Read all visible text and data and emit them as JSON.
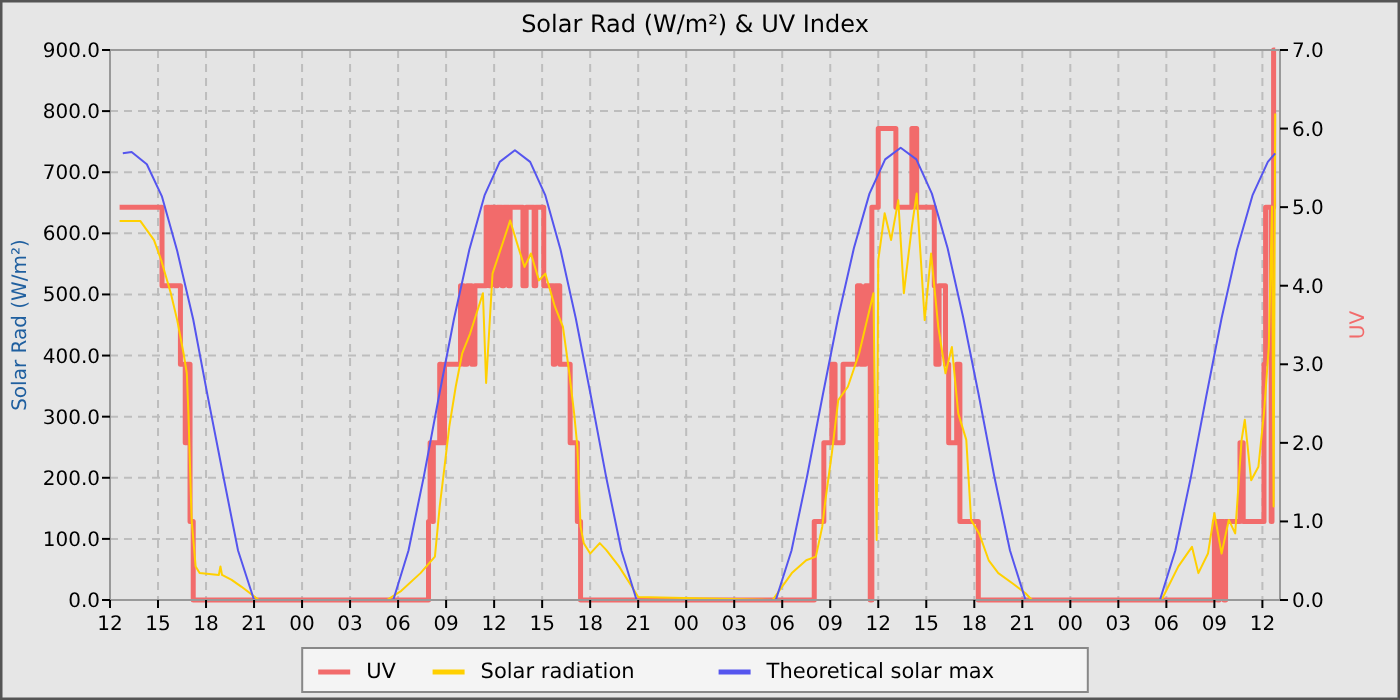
{
  "chart_data": {
    "type": "line",
    "title": "Solar Rad (W/m²) &  UV Index",
    "ylabel": "Solar Rad (W/m²)",
    "y2label": "UV",
    "xlim": [
      12,
      85.1
    ],
    "ylim": [
      0,
      900
    ],
    "y2lim": [
      0,
      7
    ],
    "xticks": [
      {
        "value": 12,
        "label": "12"
      },
      {
        "value": 15,
        "label": "15"
      },
      {
        "value": 18,
        "label": "18"
      },
      {
        "value": 21,
        "label": "21"
      },
      {
        "value": 24,
        "label": "00"
      },
      {
        "value": 27,
        "label": "03"
      },
      {
        "value": 30,
        "label": "06"
      },
      {
        "value": 33,
        "label": "09"
      },
      {
        "value": 36,
        "label": "12"
      },
      {
        "value": 39,
        "label": "15"
      },
      {
        "value": 42,
        "label": "18"
      },
      {
        "value": 45,
        "label": "21"
      },
      {
        "value": 48,
        "label": "00"
      },
      {
        "value": 51,
        "label": "03"
      },
      {
        "value": 54,
        "label": "06"
      },
      {
        "value": 57,
        "label": "09"
      },
      {
        "value": 60,
        "label": "12"
      },
      {
        "value": 63,
        "label": "15"
      },
      {
        "value": 66,
        "label": "18"
      },
      {
        "value": 69,
        "label": "21"
      },
      {
        "value": 72,
        "label": "00"
      },
      {
        "value": 75,
        "label": "03"
      },
      {
        "value": 78,
        "label": "06"
      },
      {
        "value": 81,
        "label": "09"
      },
      {
        "value": 84,
        "label": "12"
      }
    ],
    "yticks": [
      {
        "value": 0,
        "label": "0.0"
      },
      {
        "value": 100,
        "label": "100.0"
      },
      {
        "value": 200,
        "label": "200.0"
      },
      {
        "value": 300,
        "label": "300.0"
      },
      {
        "value": 400,
        "label": "400.0"
      },
      {
        "value": 500,
        "label": "500.0"
      },
      {
        "value": 600,
        "label": "600.0"
      },
      {
        "value": 700,
        "label": "700.0"
      },
      {
        "value": 800,
        "label": "800.0"
      },
      {
        "value": 900,
        "label": "900.0"
      }
    ],
    "y2ticks": [
      {
        "value": 0,
        "label": "0.0"
      },
      {
        "value": 1,
        "label": "1.0"
      },
      {
        "value": 2,
        "label": "2.0"
      },
      {
        "value": 3,
        "label": "3.0"
      },
      {
        "value": 4,
        "label": "4.0"
      },
      {
        "value": 5,
        "label": "5.0"
      },
      {
        "value": 6,
        "label": "6.0"
      },
      {
        "value": 7,
        "label": "7.0"
      }
    ],
    "grid": true,
    "legend": "bottom",
    "marker": "none",
    "line_style": "solid",
    "series": [
      {
        "name": "UV",
        "type": "step",
        "axis": "y2",
        "color": "#f26b6b",
        "x": [
          12.6,
          15.25,
          16.4,
          16.7,
          16.8,
          17.0,
          17.2,
          31.9,
          32.0,
          32.15,
          32.2,
          32.6,
          32.7,
          32.9,
          33.9,
          34.1,
          34.3,
          34.6,
          34.8,
          35.5,
          35.7,
          35.8,
          36.1,
          36.2,
          36.5,
          36.6,
          36.9,
          37.0,
          37.8,
          38.0,
          38.5,
          38.6,
          39.1,
          39.7,
          39.8,
          40.1,
          40.75,
          41.2,
          41.4,
          56.0,
          56.6,
          57.1,
          57.3,
          57.8,
          58.7,
          58.9,
          59.2,
          59.5,
          59.6,
          60.0,
          61.1,
          62.1,
          62.4,
          63.5,
          63.6,
          63.8,
          64.2,
          64.4,
          64.9,
          65.1,
          66.25,
          81.0,
          81.2,
          81.3,
          81.6,
          81.7,
          82.6,
          82.8,
          84.1,
          84.2,
          84.55,
          84.6,
          84.7,
          84.8
        ],
        "values": [
          5,
          4,
          3,
          2,
          3,
          1,
          0,
          1,
          2,
          1,
          2,
          3,
          2,
          3,
          4,
          3,
          4,
          3,
          4,
          5,
          4,
          5,
          4,
          5,
          4,
          5,
          4,
          5,
          4,
          5,
          4,
          5,
          4,
          3,
          4,
          3,
          2,
          1,
          0,
          1,
          2,
          3,
          2,
          3,
          4,
          3,
          4,
          0,
          5,
          6,
          5,
          6,
          5,
          4,
          3,
          4,
          3,
          2,
          3,
          1,
          0,
          1,
          0,
          1,
          0,
          1,
          2,
          1,
          3,
          5,
          1,
          5,
          7,
          7
        ]
      },
      {
        "name": "Solar radiation",
        "color": "#ffd000",
        "x": [
          12.6,
          13.9,
          14.75,
          15.2,
          15.8,
          16.2,
          16.6,
          16.8,
          16.9,
          17.1,
          17.35,
          17.6,
          18.8,
          18.9,
          19.0,
          19.6,
          20.2,
          21.3,
          29.3,
          30.2,
          31.4,
          32.3,
          32.6,
          32.9,
          33.2,
          33.6,
          34.0,
          34.5,
          35.3,
          35.5,
          35.9,
          36.6,
          37.0,
          37.5,
          37.9,
          38.3,
          38.8,
          39.2,
          39.8,
          40.3,
          40.7,
          41.0,
          41.2,
          41.4,
          41.6,
          42.0,
          42.6,
          43.0,
          43.8,
          44.6,
          45.0,
          53.4,
          54.6,
          55.5,
          56.1,
          56.5,
          56.7,
          57.1,
          57.5,
          58.1,
          58.8,
          59.2,
          59.7,
          59.9,
          60.0,
          60.4,
          60.8,
          61.25,
          61.6,
          62.1,
          62.4,
          62.9,
          63.3,
          63.75,
          64.2,
          64.6,
          65.0,
          65.5,
          65.8,
          66.3,
          66.9,
          67.5,
          68.4,
          69.2,
          69.6,
          77.7,
          78.75,
          79.6,
          80.0,
          80.6,
          81.0,
          81.45,
          81.9,
          82.3,
          82.7,
          82.9,
          83.3,
          83.75,
          84.1,
          84.4,
          84.6,
          84.7,
          84.8
        ],
        "values": [
          620,
          620,
          589,
          556,
          502,
          458,
          403,
          371,
          305,
          131,
          55,
          44,
          41,
          55,
          41,
          33,
          22,
          0,
          0,
          15,
          44,
          71,
          153,
          218,
          284,
          349,
          403,
          436,
          502,
          355,
          534,
          589,
          621,
          578,
          545,
          567,
          523,
          534,
          480,
          447,
          371,
          305,
          251,
          120,
          93,
          76,
          93,
          82,
          55,
          22,
          5,
          0,
          44,
          65,
          71,
          120,
          164,
          240,
          327,
          349,
          403,
          447,
          502,
          98,
          556,
          633,
          589,
          654,
          502,
          611,
          665,
          458,
          567,
          447,
          371,
          414,
          305,
          262,
          131,
          109,
          65,
          44,
          27,
          11,
          0,
          0,
          55,
          87,
          44,
          76,
          142,
          76,
          131,
          109,
          262,
          295,
          196,
          218,
          306,
          414,
          644,
          153,
          796
        ]
      },
      {
        "name": "Theoretical solar max",
        "color": "#5555ee",
        "x": [
          12.8,
          13.35,
          14.3,
          15.25,
          16.2,
          17.2,
          18.1,
          19.1,
          20.0,
          21.0,
          29.7,
          30.65,
          31.6,
          32.55,
          33.5,
          34.45,
          35.4,
          36.35,
          37.3,
          38.25,
          39.2,
          40.15,
          41.1,
          42.05,
          43.0,
          43.95,
          44.9,
          53.6,
          54.58,
          55.55,
          56.53,
          57.5,
          58.48,
          59.45,
          60.43,
          61.4,
          62.38,
          63.35,
          64.33,
          65.3,
          66.28,
          67.25,
          68.23,
          69.2,
          77.6,
          78.56,
          79.53,
          80.49,
          81.45,
          82.41,
          83.38,
          84.34,
          84.8
        ],
        "values": [
          731,
          733,
          713,
          660,
          571,
          459,
          334,
          200,
          81,
          0,
          0,
          81,
          201,
          333,
          461,
          573,
          662,
          717,
          736,
          717,
          662,
          573,
          461,
          333,
          201,
          81,
          0,
          0,
          81,
          202,
          335,
          463,
          576,
          665,
          721,
          740,
          721,
          665,
          576,
          463,
          335,
          202,
          81,
          0,
          0,
          81,
          201,
          333,
          461,
          573,
          662,
          717,
          731
        ]
      }
    ]
  }
}
